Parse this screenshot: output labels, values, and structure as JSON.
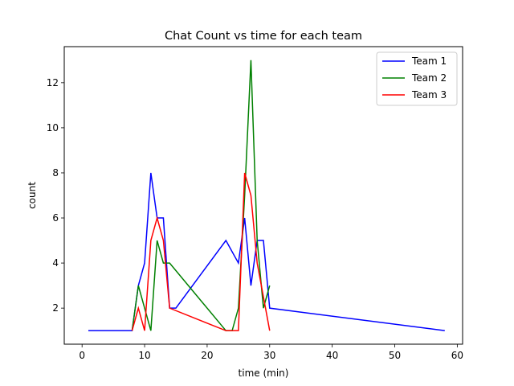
{
  "chart_data": {
    "type": "line",
    "title": "Chat Count vs time for each team",
    "xlabel": "time (min)",
    "ylabel": "count",
    "xlim": [
      -2.85,
      60.85
    ],
    "ylim": [
      0.4,
      13.6
    ],
    "xticks": [
      0,
      10,
      20,
      30,
      40,
      50,
      60
    ],
    "yticks": [
      2,
      4,
      6,
      8,
      10,
      12
    ],
    "grid": false,
    "legend_position": "top-right",
    "series": [
      {
        "name": "Team 1",
        "color": "#0000ff",
        "x": [
          1,
          8,
          9,
          10,
          11,
          12,
          13,
          14,
          15,
          23,
          25,
          26,
          27,
          28,
          29,
          30,
          58
        ],
        "y": [
          1,
          1,
          3,
          4,
          8,
          6,
          6,
          2,
          2,
          5,
          4,
          6,
          3,
          5,
          5,
          2,
          1
        ]
      },
      {
        "name": "Team 2",
        "color": "#008000",
        "x": [
          8,
          9,
          11,
          12,
          13,
          14,
          23,
          24,
          25,
          26,
          27,
          28,
          29,
          30
        ],
        "y": [
          1,
          3,
          1,
          5,
          4,
          4,
          1,
          1,
          2,
          7,
          13,
          5,
          2,
          3
        ]
      },
      {
        "name": "Team 3",
        "color": "#ff0000",
        "x": [
          8,
          9,
          10,
          11,
          12,
          13,
          14,
          23,
          24,
          25,
          26,
          27,
          28,
          30
        ],
        "y": [
          1,
          2,
          1,
          5,
          6,
          5,
          2,
          1,
          1,
          1,
          8,
          7,
          4,
          1
        ]
      }
    ]
  }
}
